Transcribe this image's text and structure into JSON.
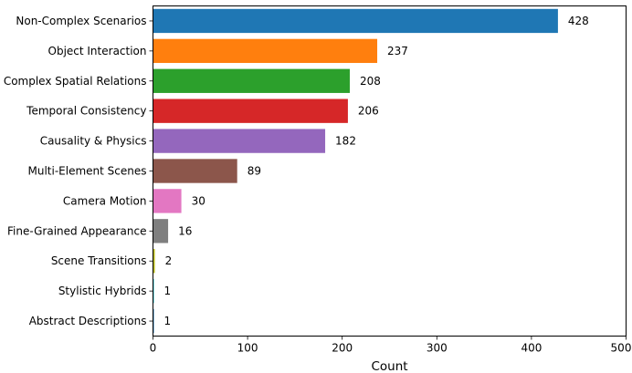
{
  "chart_data": {
    "type": "bar",
    "orientation": "horizontal",
    "title": "",
    "xlabel": "Count",
    "ylabel": "",
    "xlim": [
      0,
      500
    ],
    "xticks": [
      0,
      100,
      200,
      300,
      400,
      500
    ],
    "grid": false,
    "categories": [
      "Non-Complex Scenarios",
      "Object Interaction",
      "Complex Spatial Relations",
      "Temporal Consistency",
      "Causality & Physics",
      "Multi-Element Scenes",
      "Camera Motion",
      "Fine-Grained Appearance",
      "Scene Transitions",
      "Stylistic Hybrids",
      "Abstract Descriptions"
    ],
    "values": [
      428,
      237,
      208,
      206,
      182,
      89,
      30,
      16,
      2,
      1,
      1
    ],
    "data_labels": [
      "428",
      "237",
      "208",
      "206",
      "182",
      "89",
      "30",
      "16",
      "2",
      "1",
      "1"
    ],
    "colors": [
      "#1f77b4",
      "#ff7f0e",
      "#2ca02c",
      "#d62728",
      "#9467bd",
      "#8c564b",
      "#e377c2",
      "#7f7f7f",
      "#bcbd22",
      "#17becf",
      "#1f77b4"
    ]
  }
}
